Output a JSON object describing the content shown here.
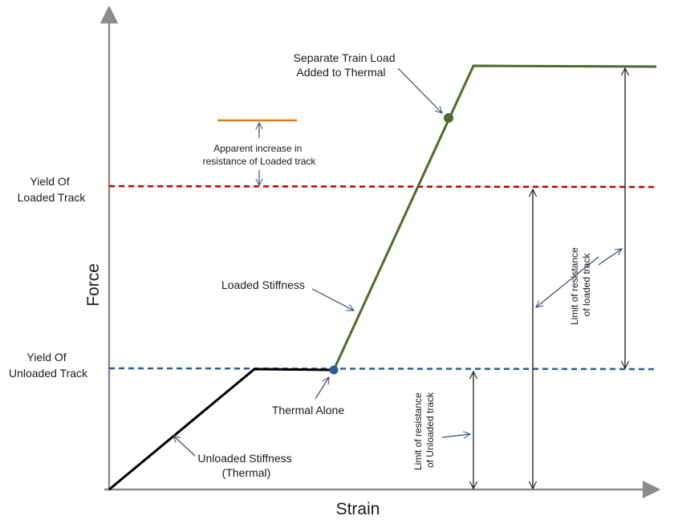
{
  "axes": {
    "x_label": "Strain",
    "y_label": "Force"
  },
  "levels": {
    "loaded_yield": [
      "Yield Of",
      "Loaded Track"
    ],
    "unloaded_yield": [
      "Yield Of",
      "Unloaded Track"
    ]
  },
  "annotations": {
    "separate_train_load": [
      "Separate Train Load",
      "Added to Thermal"
    ],
    "apparent_increase": [
      "Apparent increase in",
      "resistance of Loaded track"
    ],
    "loaded_stiffness": "Loaded Stiffness",
    "thermal_alone": "Thermal Alone",
    "unloaded_stiffness": [
      "Unloaded Stiffness",
      "(Thermal)"
    ],
    "limit_loaded": [
      "Limit of resistance",
      "of loaded track"
    ],
    "limit_unloaded": [
      "Limit of resistance",
      "of Unloaded track"
    ]
  },
  "colors": {
    "axis": "#8c8c8c",
    "unloaded_curve": "#000000",
    "loaded_curve": "#4f6b2a",
    "loaded_yield_line": "#c00000",
    "unloaded_yield_line": "#2e5c9a",
    "apparent_increase_line": "#e07b1a",
    "thermal_point": "#2e5c9a",
    "train_load_point": "#4f6b2a",
    "pointer": "#3a4a6a"
  }
}
